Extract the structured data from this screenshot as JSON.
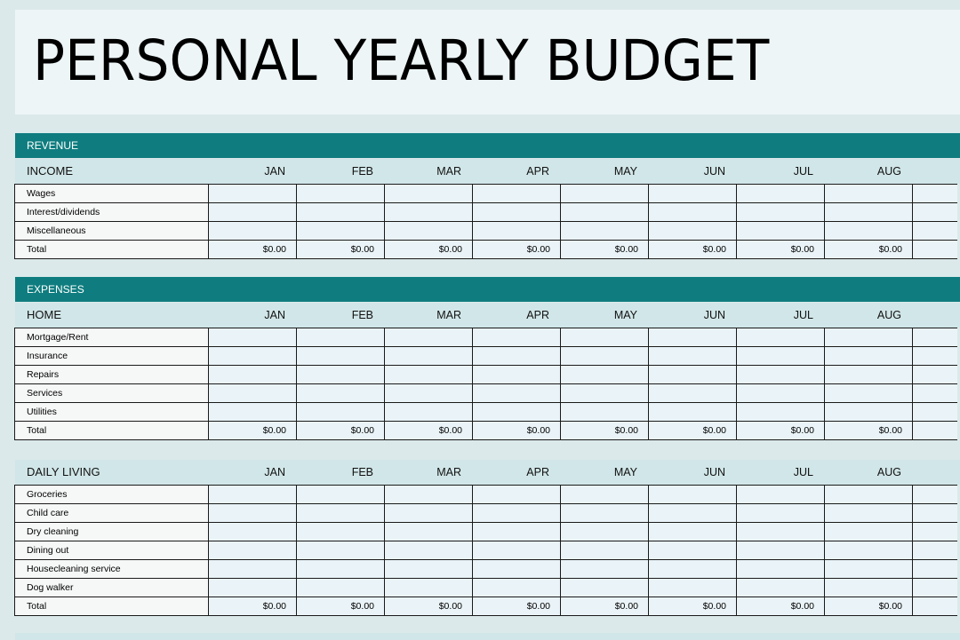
{
  "title": "PERSONAL YEARLY BUDGET",
  "months": [
    "JAN",
    "FEB",
    "MAR",
    "APR",
    "MAY",
    "JUN",
    "JUL",
    "AUG"
  ],
  "revenue": {
    "band": "REVENUE",
    "section": "INCOME",
    "rows": [
      "Wages",
      "Interest/dividends",
      "Miscellaneous"
    ],
    "total_label": "Total",
    "totals": [
      "$0.00",
      "$0.00",
      "$0.00",
      "$0.00",
      "$0.00",
      "$0.00",
      "$0.00",
      "$0.00"
    ]
  },
  "expenses": {
    "band": "EXPENSES",
    "home": {
      "section": "HOME",
      "rows": [
        "Mortgage/Rent",
        "Insurance",
        "Repairs",
        "Services",
        "Utilities"
      ],
      "total_label": "Total",
      "totals": [
        "$0.00",
        "$0.00",
        "$0.00",
        "$0.00",
        "$0.00",
        "$0.00",
        "$0.00",
        "$0.00"
      ]
    },
    "daily": {
      "section": "DAILY LIVING",
      "rows": [
        "Groceries",
        "Child care",
        "Dry cleaning",
        "Dining out",
        "Housecleaning service",
        "Dog walker"
      ],
      "total_label": "Total",
      "totals": [
        "$0.00",
        "$0.00",
        "$0.00",
        "$0.00",
        "$0.00",
        "$0.00",
        "$0.00",
        "$0.00"
      ]
    }
  },
  "colors": {
    "band": "#0f7d7f",
    "header_row": "#d1e6e8",
    "cell": "#eaf4f8"
  }
}
